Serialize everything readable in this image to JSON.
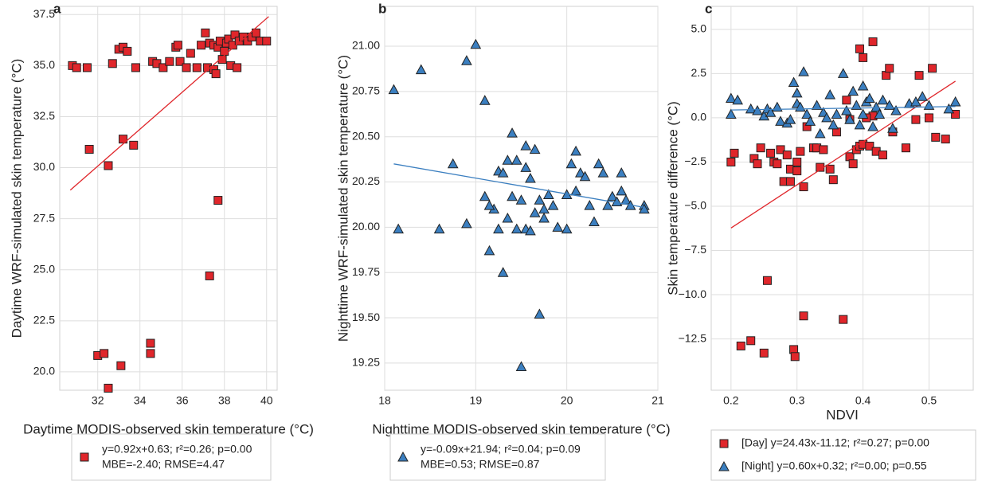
{
  "chart_data": [
    {
      "type": "scatter",
      "panel_label": "a",
      "xlabel": "Daytime MODIS-observed skin temperature (°C)",
      "ylabel": "Daytime WRF-simulated skin temperature (°C)",
      "xlim": [
        30.2,
        40.5
      ],
      "ylim": [
        19.1,
        37.9
      ],
      "xticks": [
        32,
        34,
        36,
        38,
        40
      ],
      "yticks": [
        {
          "value": 20,
          "label": "20.0"
        },
        22.5,
        {
          "value": 25,
          "label": "25.0"
        },
        27.5,
        {
          "value": 30,
          "label": "30.0"
        },
        32.5,
        {
          "value": 35,
          "label": "35.0"
        },
        37.5
      ],
      "grid": true,
      "series": [
        {
          "name": "y=0.92x+0.63; r²=0.26; p=0.00",
          "note": "MBE=-2.40; RMSE=4.47",
          "color": "#e0262b",
          "marker": "square",
          "x": [
            30.8,
            31.0,
            31.5,
            31.6,
            32.5,
            32.7,
            33.0,
            33.2,
            33.4,
            33.2,
            33.7,
            33.8,
            34.6,
            34.8,
            35.1,
            35.4,
            35.7,
            35.8,
            35.9,
            36.2,
            36.4,
            36.7,
            36.9,
            37.1,
            37.2,
            37.3,
            37.5,
            37.5,
            37.6,
            37.7,
            37.8,
            37.9,
            38.0,
            38.1,
            38.2,
            38.3,
            38.4,
            38.5,
            38.6,
            38.7,
            38.9,
            39.1,
            39.3,
            39.5,
            39.7,
            40.0,
            37.3,
            37.7,
            32.0,
            32.3,
            32.5,
            33.1,
            34.5,
            34.5
          ],
          "y": [
            35.0,
            34.9,
            34.9,
            30.9,
            30.1,
            35.1,
            35.8,
            35.9,
            35.7,
            31.4,
            31.1,
            34.9,
            35.2,
            35.1,
            34.9,
            35.2,
            35.9,
            36.0,
            35.2,
            34.9,
            35.6,
            34.9,
            36.0,
            36.6,
            34.9,
            36.1,
            36.0,
            34.8,
            34.6,
            35.9,
            36.2,
            35.3,
            35.7,
            36.1,
            36.3,
            35.0,
            36.0,
            36.5,
            34.9,
            36.2,
            36.4,
            36.2,
            36.4,
            36.6,
            36.2,
            36.2,
            24.7,
            28.4,
            20.8,
            20.9,
            19.2,
            20.3,
            20.9,
            21.4
          ],
          "fit": {
            "x": [
              30.7,
              40.1
            ],
            "y": [
              28.9,
              37.4
            ]
          }
        }
      ]
    },
    {
      "type": "scatter",
      "panel_label": "b",
      "xlabel": "Nighttime MODIS-observed skin temperature (°C)",
      "ylabel": "Nighttime WRF-simulated skin temperature (°C)",
      "xlim": [
        18,
        21
      ],
      "ylim": [
        19.1,
        21.22
      ],
      "xticks": [
        18,
        19,
        20,
        21
      ],
      "yticks": [
        19.25,
        {
          "value": 19.5,
          "label": "19.50"
        },
        19.75,
        {
          "value": 20,
          "label": "20.00"
        },
        20.25,
        {
          "value": 20.5,
          "label": "20.50"
        },
        20.75,
        {
          "value": 21,
          "label": "21.00"
        }
      ],
      "grid": true,
      "series": [
        {
          "name": "y=-0.09x+21.94; r²=0.04; p=0.09",
          "note": "MBE=0.53; RMSE=0.87",
          "color": "#3b7fc0",
          "marker": "triangle",
          "x": [
            18.1,
            18.15,
            18.4,
            18.6,
            18.75,
            18.9,
            18.9,
            19.0,
            19.1,
            19.15,
            19.1,
            19.2,
            19.25,
            19.3,
            19.25,
            19.3,
            19.35,
            19.35,
            19.4,
            19.4,
            19.45,
            19.45,
            19.5,
            19.5,
            19.55,
            19.55,
            19.55,
            19.6,
            19.65,
            19.65,
            19.7,
            19.7,
            19.75,
            19.75,
            19.8,
            19.85,
            19.9,
            20.0,
            20.05,
            20.1,
            20.1,
            20.15,
            20.2,
            20.25,
            20.3,
            20.35,
            20.4,
            20.45,
            20.5,
            20.55,
            20.6,
            20.6,
            20.65,
            20.7,
            20.85,
            20.85,
            19.6,
            20.0,
            19.15
          ],
          "y": [
            20.76,
            19.99,
            20.87,
            19.99,
            20.35,
            20.92,
            20.02,
            21.01,
            20.7,
            19.87,
            20.17,
            20.1,
            20.31,
            19.75,
            19.99,
            20.3,
            20.37,
            20.05,
            20.52,
            20.17,
            20.37,
            19.99,
            19.23,
            20.15,
            20.45,
            20.33,
            19.99,
            20.27,
            20.43,
            20.08,
            19.52,
            20.15,
            20.1,
            20.05,
            20.18,
            20.12,
            20.0,
            19.99,
            20.35,
            20.42,
            20.2,
            20.3,
            20.28,
            20.12,
            20.03,
            20.35,
            20.3,
            20.12,
            20.17,
            20.14,
            20.3,
            20.2,
            20.15,
            20.12,
            20.12,
            20.1,
            19.98,
            20.18,
            20.12
          ],
          "fit": {
            "x": [
              18.1,
              20.85
            ],
            "y": [
              20.35,
              20.11
            ]
          }
        }
      ]
    },
    {
      "type": "scatter",
      "panel_label": "c",
      "xlabel": "NDVI",
      "ylabel": "Skin temperature difference (°C)",
      "xlim": [
        0.17,
        0.567
      ],
      "ylim": [
        -15.4,
        6.3
      ],
      "xticks": [
        0.2,
        0.3,
        0.4,
        0.5
      ],
      "yticks": [
        {
          "value": -12.5,
          "label": "−12.5"
        },
        {
          "value": -10,
          "label": "−10.0"
        },
        {
          "value": -7.5,
          "label": "−7.5"
        },
        {
          "value": -5,
          "label": "−5.0"
        },
        {
          "value": -2.5,
          "label": "−2.5"
        },
        {
          "value": 0,
          "label": "0.0"
        },
        2.5,
        {
          "value": 5,
          "label": "5.0"
        }
      ],
      "grid": true,
      "series": [
        {
          "name": "[Day] y=24.43x-11.12; r²=0.27; p=0.00",
          "color": "#e0262b",
          "marker": "square",
          "x": [
            0.2,
            0.205,
            0.215,
            0.23,
            0.235,
            0.24,
            0.245,
            0.25,
            0.255,
            0.26,
            0.265,
            0.27,
            0.275,
            0.28,
            0.285,
            0.29,
            0.29,
            0.295,
            0.297,
            0.3,
            0.3,
            0.305,
            0.31,
            0.31,
            0.315,
            0.325,
            0.33,
            0.335,
            0.34,
            0.35,
            0.355,
            0.36,
            0.37,
            0.375,
            0.38,
            0.385,
            0.39,
            0.395,
            0.4,
            0.395,
            0.4,
            0.41,
            0.415,
            0.415,
            0.42,
            0.43,
            0.435,
            0.44,
            0.445,
            0.465,
            0.48,
            0.485,
            0.5,
            0.505,
            0.51,
            0.525,
            0.54,
            0.38,
            0.405
          ],
          "y": [
            -2.5,
            -2.0,
            -12.9,
            -12.6,
            -2.3,
            -2.6,
            -1.7,
            -13.3,
            -9.2,
            -2.0,
            -2.5,
            -2.6,
            -1.8,
            -3.6,
            -2.1,
            -3.6,
            -2.9,
            -13.1,
            -13.5,
            -3.0,
            -2.5,
            -1.9,
            -11.2,
            -3.9,
            -0.5,
            -1.7,
            -1.7,
            -2.8,
            -1.8,
            -2.9,
            -3.5,
            -0.8,
            -11.4,
            1.0,
            -2.2,
            -2.6,
            -1.8,
            -1.6,
            -1.5,
            3.9,
            3.4,
            -1.6,
            4.3,
            0.1,
            -1.9,
            -2.1,
            2.4,
            2.8,
            -0.8,
            -1.7,
            -0.1,
            2.4,
            0.0,
            2.8,
            -1.1,
            -1.2,
            0.2,
            -0.1,
            0.0
          ],
          "fit": {
            "x": [
              0.2,
              0.54
            ],
            "y": [
              -6.23,
              2.07
            ]
          }
        },
        {
          "name": "[Night] y=0.60x+0.32; r²=0.00; p=0.55",
          "color": "#3b7fc0",
          "marker": "triangle",
          "x": [
            0.2,
            0.2,
            0.21,
            0.23,
            0.24,
            0.25,
            0.255,
            0.26,
            0.27,
            0.275,
            0.285,
            0.29,
            0.295,
            0.3,
            0.3,
            0.305,
            0.31,
            0.315,
            0.32,
            0.33,
            0.335,
            0.34,
            0.345,
            0.35,
            0.355,
            0.36,
            0.37,
            0.375,
            0.38,
            0.385,
            0.39,
            0.395,
            0.4,
            0.4,
            0.405,
            0.41,
            0.415,
            0.42,
            0.425,
            0.43,
            0.44,
            0.445,
            0.45,
            0.47,
            0.48,
            0.49,
            0.5,
            0.53,
            0.54
          ],
          "y": [
            0.2,
            1.1,
            1.0,
            0.5,
            0.4,
            0.1,
            0.5,
            0.3,
            0.6,
            -0.2,
            -0.3,
            -0.1,
            2.0,
            0.8,
            1.4,
            0.6,
            2.6,
            0.2,
            -0.2,
            0.7,
            -0.9,
            0.3,
            0.0,
            1.3,
            -0.4,
            0.2,
            2.5,
            0.4,
            -0.1,
            1.5,
            0.7,
            -0.4,
            1.8,
            0.2,
            0.9,
            1.1,
            -0.5,
            0.6,
            0.2,
            1.0,
            0.7,
            -0.6,
            0.4,
            0.8,
            0.9,
            1.2,
            0.7,
            0.5,
            0.9
          ],
          "fit": {
            "x": [
              0.2,
              0.54
            ],
            "y": [
              0.44,
              0.64
            ]
          }
        }
      ]
    }
  ]
}
